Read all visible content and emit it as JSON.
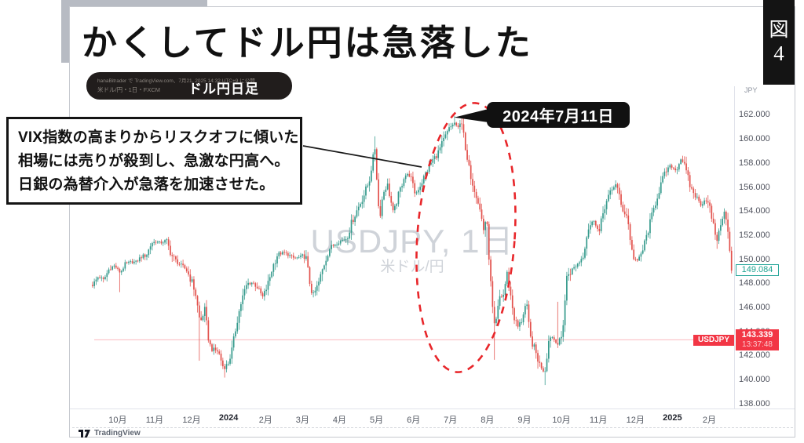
{
  "page": {
    "figure_kanji": "図",
    "figure_number": "4"
  },
  "header": {
    "title": "かくしてドル円は急落した"
  },
  "symbol_pill": {
    "publish_line": "hanaBitrader で TradingView.com、7月21, 2025 14:32 UTC+9 に公開",
    "symbol_line": "米ドル/円・1日・FXCM",
    "label": "ドル円日足"
  },
  "annotation_box": {
    "lines": [
      "VIX指数の高まりからリスクオフに傾いた",
      "相場には売りが殺到し、急激な円高へ。",
      "日銀の為替介入が急落を加速させた。"
    ]
  },
  "callout": {
    "date": "2024年7月11日"
  },
  "watermark": {
    "title": "USDJPY, 1日",
    "subtitle": "米ドル/円"
  },
  "axis": {
    "currency": "JPY",
    "last_price": "149.084",
    "symbol_tag": "USDJPY",
    "counter_price": "143.339",
    "countdown": "13:37:48"
  },
  "attribution": {
    "name": "TradingView"
  },
  "colors": {
    "up": "#359a8c",
    "down": "#e2514c",
    "price_line": "rgba(242,54,69,0.35)",
    "ellipse_red": "#e8262a",
    "last_teal": "#26a69a",
    "tag_red": "#f23645"
  },
  "chart_data": {
    "type": "candlestick",
    "title": "USDJPY, 1日 (米ドル/円) daily candles, Oct 2023 - Feb 2025",
    "symbol": "USDJPY",
    "interval": "1日",
    "legend_position": "none",
    "grid": false,
    "xlim": [
      -0.74,
      16.67
    ],
    "ylim": [
      137.63,
      164.41
    ],
    "price_line": 143.339,
    "last_close": 149.084,
    "y_ticks": [
      {
        "label": "162.000",
        "value": 162
      },
      {
        "label": "160.000",
        "value": 160
      },
      {
        "label": "158.000",
        "value": 158
      },
      {
        "label": "156.000",
        "value": 156
      },
      {
        "label": "154.000",
        "value": 154
      },
      {
        "label": "152.000",
        "value": 152
      },
      {
        "label": "150.000",
        "value": 150
      },
      {
        "label": "148.000",
        "value": 148
      },
      {
        "label": "146.000",
        "value": 146
      },
      {
        "label": "144.000",
        "value": 144
      },
      {
        "label": "142.000",
        "value": 142
      },
      {
        "label": "140.000",
        "value": 140
      },
      {
        "label": "138.000",
        "value": 138
      }
    ],
    "x_ticks": [
      {
        "label": "10月",
        "t": 0,
        "bold": false
      },
      {
        "label": "11月",
        "t": 1,
        "bold": false
      },
      {
        "label": "12月",
        "t": 2,
        "bold": false
      },
      {
        "label": "2024",
        "t": 3,
        "bold": true
      },
      {
        "label": "2月",
        "t": 4,
        "bold": false
      },
      {
        "label": "3月",
        "t": 5,
        "bold": false
      },
      {
        "label": "4月",
        "t": 6,
        "bold": false
      },
      {
        "label": "5月",
        "t": 7,
        "bold": false
      },
      {
        "label": "6月",
        "t": 8,
        "bold": false
      },
      {
        "label": "7月",
        "t": 9,
        "bold": false
      },
      {
        "label": "8月",
        "t": 10,
        "bold": false
      },
      {
        "label": "9月",
        "t": 11,
        "bold": false
      },
      {
        "label": "10月",
        "t": 12,
        "bold": false
      },
      {
        "label": "11月",
        "t": 13,
        "bold": false
      },
      {
        "label": "12月",
        "t": 14,
        "bold": false
      },
      {
        "label": "2025",
        "t": 15,
        "bold": true
      },
      {
        "label": "2月",
        "t": 16,
        "bold": false
      }
    ],
    "anchors": [
      [
        -0.68,
        147.9
      ],
      [
        -0.52,
        148.6
      ],
      [
        -0.38,
        148.3
      ],
      [
        -0.22,
        149.3
      ],
      [
        -0.08,
        149.5
      ],
      [
        0.07,
        148.9
      ],
      [
        0.2,
        149.6
      ],
      [
        0.35,
        149.8
      ],
      [
        0.5,
        149.8
      ],
      [
        0.62,
        150.2
      ],
      [
        0.78,
        150.4
      ],
      [
        0.92,
        151.4
      ],
      [
        1.05,
        151.5
      ],
      [
        1.18,
        151.4
      ],
      [
        1.32,
        151.6
      ],
      [
        1.45,
        150.4
      ],
      [
        1.58,
        149.9
      ],
      [
        1.72,
        149.5
      ],
      [
        1.85,
        149.2
      ],
      [
        2.0,
        148.2
      ],
      [
        2.1,
        147.3
      ],
      [
        2.23,
        144.7
      ],
      [
        2.35,
        145.9
      ],
      [
        2.48,
        142.9
      ],
      [
        2.6,
        142.5
      ],
      [
        2.72,
        142.4
      ],
      [
        2.87,
        140.9
      ],
      [
        3.0,
        141.5
      ],
      [
        3.1,
        142.6
      ],
      [
        3.22,
        144.8
      ],
      [
        3.35,
        146.6
      ],
      [
        3.5,
        148.0
      ],
      [
        3.65,
        148.1
      ],
      [
        3.78,
        147.7
      ],
      [
        3.92,
        146.9
      ],
      [
        4.05,
        147.8
      ],
      [
        4.18,
        149.3
      ],
      [
        4.32,
        150.4
      ],
      [
        4.48,
        150.6
      ],
      [
        4.62,
        150.4
      ],
      [
        4.78,
        150.1
      ],
      [
        4.92,
        150.2
      ],
      [
        5.08,
        150.4
      ],
      [
        5.2,
        148.0
      ],
      [
        5.28,
        147.0
      ],
      [
        5.42,
        147.9
      ],
      [
        5.58,
        149.6
      ],
      [
        5.72,
        150.9
      ],
      [
        5.88,
        151.3
      ],
      [
        6.05,
        151.6
      ],
      [
        6.2,
        151.8
      ],
      [
        6.35,
        153.3
      ],
      [
        6.5,
        154.3
      ],
      [
        6.65,
        155.3
      ],
      [
        6.8,
        156.5
      ],
      [
        6.9,
        158.4
      ],
      [
        6.97,
        159.5
      ],
      [
        7.02,
        155.8
      ],
      [
        7.08,
        153.4
      ],
      [
        7.18,
        155.6
      ],
      [
        7.3,
        156.2
      ],
      [
        7.45,
        153.9
      ],
      [
        7.6,
        155.4
      ],
      [
        7.75,
        157.0
      ],
      [
        7.9,
        157.1
      ],
      [
        8.05,
        155.4
      ],
      [
        8.2,
        156.3
      ],
      [
        8.35,
        157.3
      ],
      [
        8.5,
        158.2
      ],
      [
        8.65,
        158.8
      ],
      [
        8.8,
        159.8
      ],
      [
        8.95,
        160.8
      ],
      [
        9.1,
        161.4
      ],
      [
        9.22,
        160.9
      ],
      [
        9.33,
        161.7
      ],
      [
        9.4,
        158.9
      ],
      [
        9.5,
        157.6
      ],
      [
        9.6,
        156.4
      ],
      [
        9.72,
        155.2
      ],
      [
        9.82,
        153.8
      ],
      [
        9.9,
        152.4
      ],
      [
        9.97,
        153.7
      ],
      [
        10.05,
        149.8
      ],
      [
        10.12,
        146.6
      ],
      [
        10.18,
        144.3
      ],
      [
        10.25,
        145.2
      ],
      [
        10.33,
        146.9
      ],
      [
        10.45,
        147.1
      ],
      [
        10.52,
        149.1
      ],
      [
        10.6,
        147.5
      ],
      [
        10.72,
        145.2
      ],
      [
        10.82,
        144.4
      ],
      [
        10.93,
        145.0
      ],
      [
        11.05,
        146.5
      ],
      [
        11.15,
        143.6
      ],
      [
        11.28,
        142.5
      ],
      [
        11.42,
        141.2
      ],
      [
        11.55,
        140.7
      ],
      [
        11.68,
        143.8
      ],
      [
        11.8,
        143.4
      ],
      [
        11.92,
        142.9
      ],
      [
        12.02,
        143.7
      ],
      [
        12.15,
        148.7
      ],
      [
        12.3,
        149.2
      ],
      [
        12.45,
        149.7
      ],
      [
        12.58,
        150.3
      ],
      [
        12.72,
        152.6
      ],
      [
        12.88,
        153.3
      ],
      [
        13.02,
        152.2
      ],
      [
        13.15,
        154.3
      ],
      [
        13.3,
        155.4
      ],
      [
        13.48,
        156.4
      ],
      [
        13.62,
        154.4
      ],
      [
        13.78,
        153.6
      ],
      [
        13.92,
        150.4
      ],
      [
        14.05,
        149.8
      ],
      [
        14.2,
        150.8
      ],
      [
        14.35,
        152.5
      ],
      [
        14.52,
        154.5
      ],
      [
        14.68,
        156.2
      ],
      [
        14.82,
        157.3
      ],
      [
        14.95,
        157.8
      ],
      [
        15.1,
        157.4
      ],
      [
        15.25,
        158.5
      ],
      [
        15.38,
        157.2
      ],
      [
        15.5,
        155.9
      ],
      [
        15.65,
        155.2
      ],
      [
        15.78,
        154.5
      ],
      [
        15.9,
        155.1
      ],
      [
        16.02,
        154.2
      ],
      [
        16.12,
        152.6
      ],
      [
        16.22,
        151.5
      ],
      [
        16.32,
        153.3
      ],
      [
        16.42,
        154.0
      ],
      [
        16.52,
        151.8
      ],
      [
        16.6,
        149.084
      ]
    ],
    "wick_events": [
      {
        "t": 0.07,
        "low": 147.3
      },
      {
        "t": 2.23,
        "low": 141.6
      },
      {
        "t": 2.87,
        "low": 140.2
      },
      {
        "t": 6.97,
        "high": 160.25
      },
      {
        "t": 9.1,
        "high": 161.95
      },
      {
        "t": 9.33,
        "high": 161.81
      },
      {
        "t": 10.18,
        "low": 141.68
      },
      {
        "t": 11.55,
        "low": 139.58
      },
      {
        "t": 11.9,
        "high": 146.5
      },
      {
        "t": 16.22,
        "low": 150.9
      }
    ],
    "candle_count": 354
  }
}
